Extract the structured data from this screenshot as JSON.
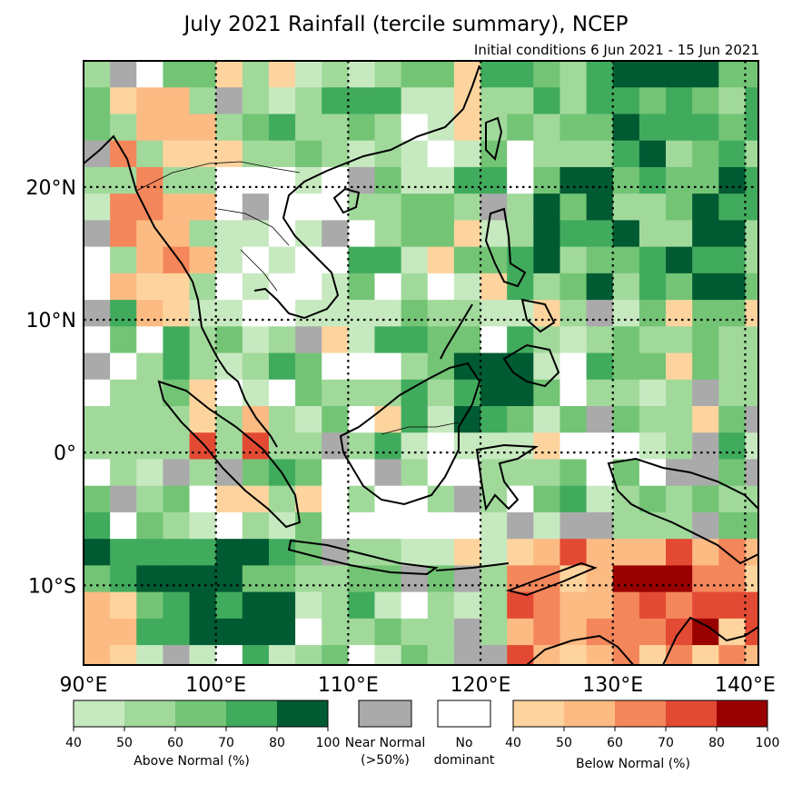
{
  "map": {
    "title": "July 2021 Rainfall (tercile summary), NCEP",
    "subtitle": "Initial conditions 6 Jun 2021 - 15 Jun 2021",
    "lat_labels": [
      "20°N",
      "10°N",
      "0°",
      "10°S"
    ],
    "lon_labels": [
      "90°E",
      "100°E",
      "110°E",
      "120°E",
      "130°E",
      "140°E"
    ],
    "lat_range": [
      -16,
      29.5
    ],
    "lon_range": [
      90,
      141
    ],
    "gridlines": "dotted every 10 degrees"
  },
  "legend": {
    "above": {
      "ticks": [
        "40",
        "50",
        "60",
        "70",
        "80",
        "100"
      ],
      "label": "Above Normal (%)",
      "colors": [
        "#c7e9c0",
        "#a1d99b",
        "#74c476",
        "#41ab5d",
        "#005a32"
      ]
    },
    "near": {
      "label_line1": "Near Normal",
      "label_line2": "(>50%)",
      "color": "#aaaaaa"
    },
    "nodom": {
      "label_line1": "No",
      "label_line2": "dominant",
      "color": "#ffffff"
    },
    "below": {
      "ticks": [
        "40",
        "50",
        "60",
        "70",
        "80",
        "100"
      ],
      "label": "Below Normal (%)",
      "colors": [
        "#fdd49e",
        "#fdbb84",
        "#f4865b",
        "#e34a33",
        "#990000"
      ]
    }
  }
}
